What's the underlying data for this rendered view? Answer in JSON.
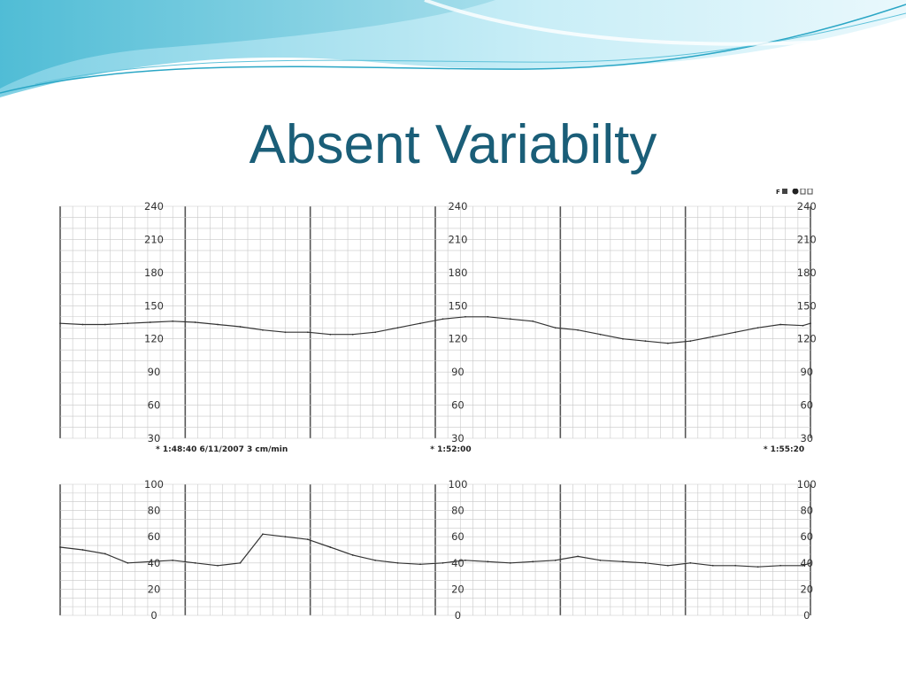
{
  "slide": {
    "title": "Absent Variabilty",
    "colors": {
      "title": "#1a5e78",
      "wave_light": "#bfe7f3",
      "wave_dark": "#3fb4cf",
      "trace": "#333333",
      "grid": "#c8c8c8"
    }
  },
  "chart_data": [
    {
      "type": "line",
      "title": "",
      "ylabel": "",
      "ylim": [
        30,
        240
      ],
      "y_ticks": [
        30,
        60,
        90,
        120,
        150,
        180,
        210,
        240
      ],
      "time_stamps": [
        "* 1:48:40  6/11/2007  3 cm/min",
        "* 1:52:00",
        "* 1:55:20"
      ],
      "x_units": "minutes from 1:48:40",
      "xlim": [
        0,
        10
      ],
      "grid": true,
      "series": [
        {
          "x": [
            0,
            0.3,
            0.6,
            0.9,
            1.2,
            1.5,
            1.8,
            2.1,
            2.4,
            2.7,
            3.0,
            3.3,
            3.6,
            3.9,
            4.2,
            4.5,
            4.8,
            5.1,
            5.4,
            5.7,
            6.0,
            6.3,
            6.6,
            6.9,
            7.2,
            7.5,
            7.8,
            8.1,
            8.4,
            8.7,
            9.0,
            9.3,
            9.6,
            9.9,
            10
          ],
          "y": [
            134,
            133,
            133,
            134,
            135,
            136,
            135,
            133,
            131,
            128,
            126,
            126,
            124,
            124,
            126,
            130,
            134,
            138,
            140,
            140,
            138,
            136,
            130,
            128,
            124,
            120,
            118,
            116,
            118,
            122,
            126,
            130,
            133,
            132,
            134
          ]
        }
      ]
    },
    {
      "type": "line",
      "title": "",
      "ylabel": "",
      "ylim": [
        0,
        100
      ],
      "y_ticks": [
        0,
        20,
        40,
        60,
        80,
        100
      ],
      "xlim": [
        0,
        10
      ],
      "grid": true,
      "series": [
        {
          "x": [
            0,
            0.3,
            0.6,
            0.9,
            1.2,
            1.5,
            1.8,
            2.1,
            2.4,
            2.7,
            3.0,
            3.3,
            3.6,
            3.9,
            4.2,
            4.5,
            4.8,
            5.1,
            5.4,
            5.7,
            6.0,
            6.3,
            6.6,
            6.9,
            7.2,
            7.5,
            7.8,
            8.1,
            8.4,
            8.7,
            9.0,
            9.3,
            9.6,
            9.9,
            10
          ],
          "y": [
            52,
            50,
            47,
            40,
            41,
            42,
            40,
            38,
            40,
            62,
            60,
            58,
            52,
            46,
            42,
            40,
            39,
            40,
            42,
            41,
            40,
            41,
            42,
            45,
            42,
            41,
            40,
            38,
            40,
            38,
            38,
            37,
            38,
            38,
            40
          ]
        }
      ]
    }
  ]
}
